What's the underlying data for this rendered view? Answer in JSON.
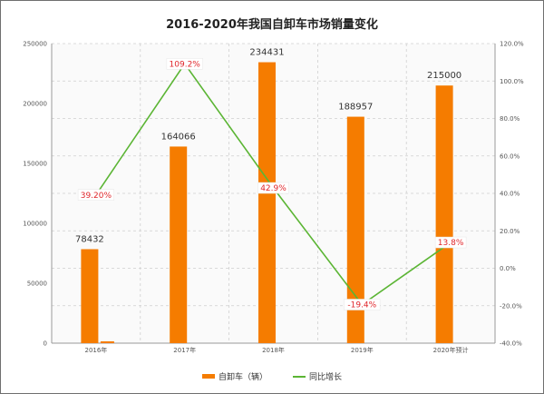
{
  "colors": {
    "bar": "#f57c00",
    "line": "#5bb534",
    "label": "#e0262b",
    "grid": "#cfcfcf"
  },
  "chart_data": {
    "type": "bar",
    "title": "2016-2020年我国自卸车市场销量变化",
    "categories": [
      "2016年",
      "2017年",
      "2018年",
      "2019年",
      "2020年预计"
    ],
    "series": [
      {
        "name": "自卸车（辆）",
        "type": "bar",
        "axis": "left",
        "values": [
          78432,
          164066,
          234431,
          188957,
          215000
        ],
        "labels": [
          "78432",
          "164066",
          "234431",
          "188957",
          "215000"
        ]
      },
      {
        "name": "同比增长",
        "type": "line",
        "axis": "right",
        "values": [
          39.2,
          109.2,
          42.9,
          -19.4,
          13.8
        ],
        "labels": [
          "39.20%",
          "109.2%",
          "42.9%",
          "-19.4%",
          "13.8%"
        ]
      }
    ],
    "y_left": {
      "min": 0,
      "max": 250000,
      "ticks": [
        "0",
        "50000",
        "100000",
        "150000",
        "200000",
        "250000"
      ]
    },
    "y_right": {
      "min": -40,
      "max": 120,
      "ticks": [
        "-40.0%",
        "-20.0%",
        "0.0%",
        "20.0%",
        "40.0%",
        "60.0%",
        "80.0%",
        "100.0%",
        "120.0%"
      ]
    },
    "grid": true,
    "legend_position": "bottom"
  }
}
